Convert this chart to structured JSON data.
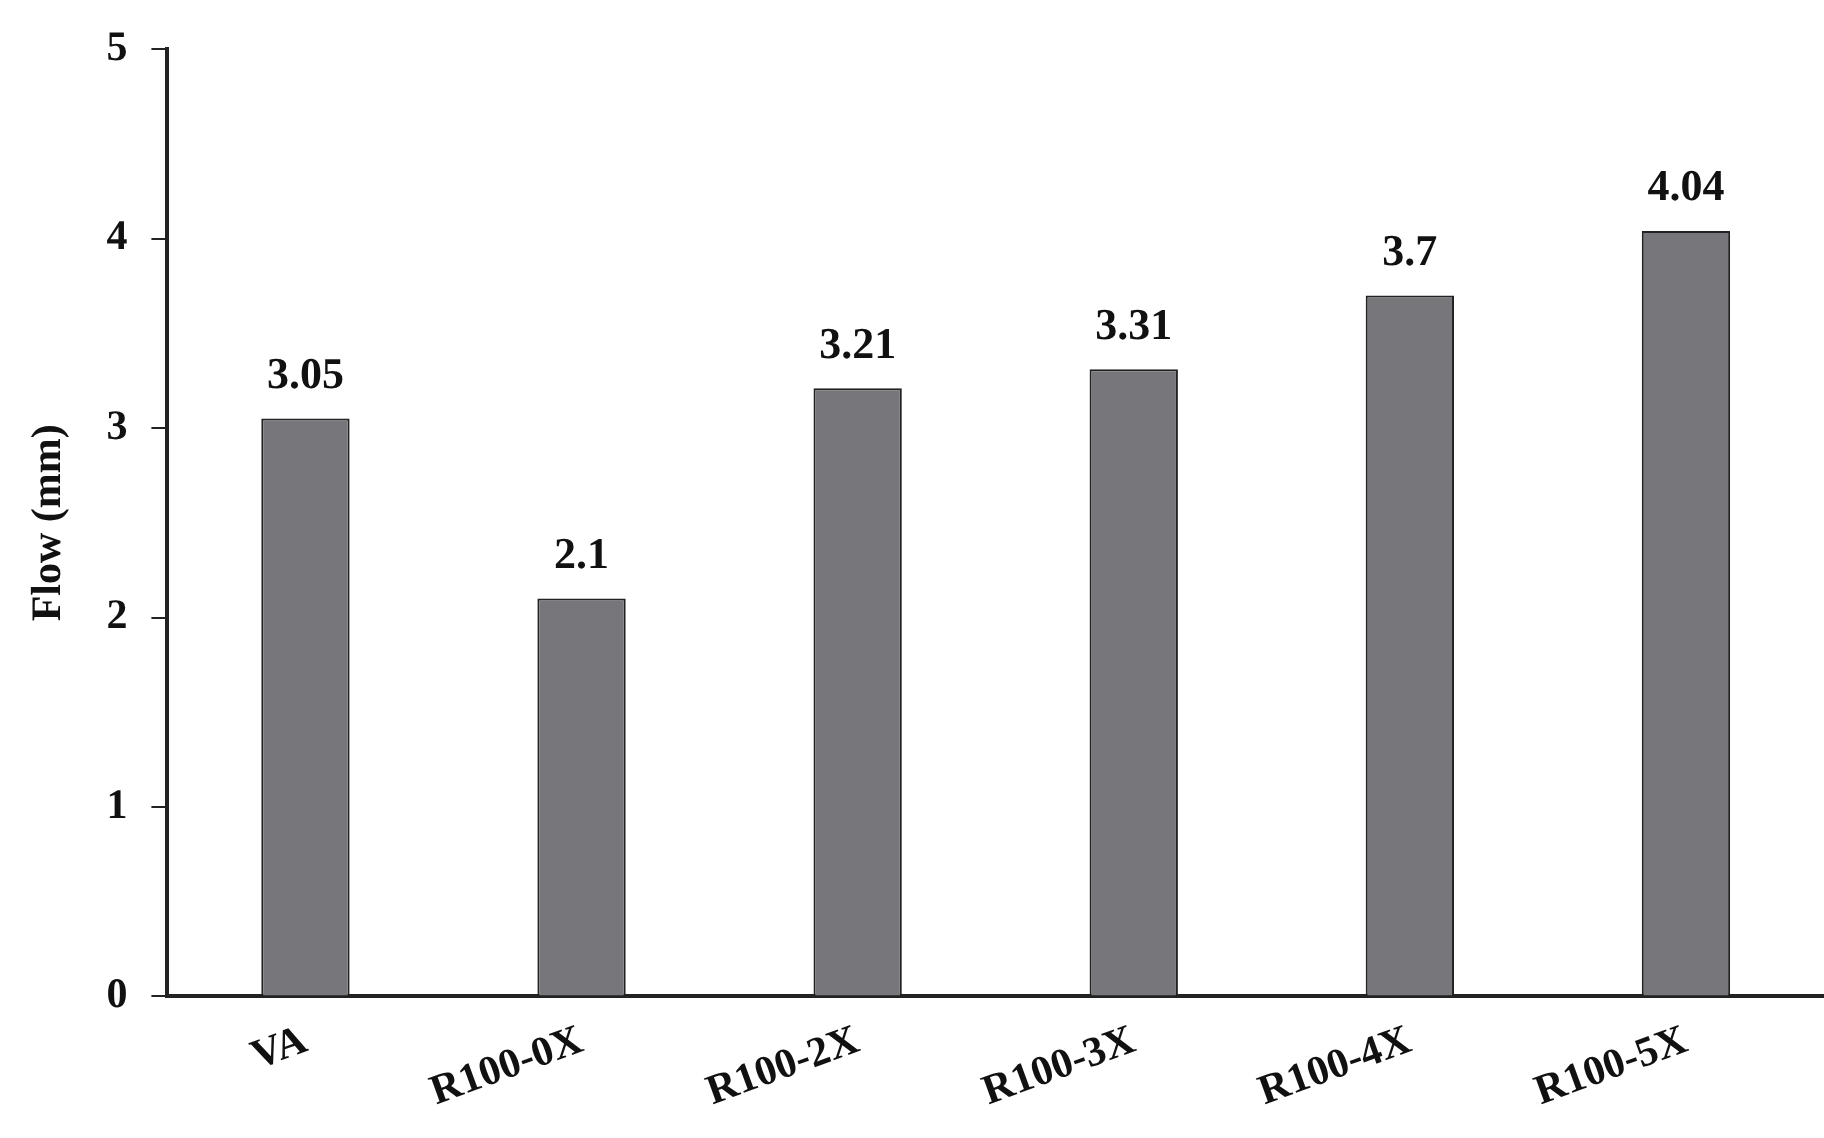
{
  "chart_data": {
    "type": "bar",
    "ylabel": "Flow (mm)",
    "categories": [
      "VA",
      "R100-0X",
      "R100-2X",
      "R100-3X",
      "R100-4X",
      "R100-5X"
    ],
    "values": [
      3.05,
      2.1,
      3.21,
      3.31,
      3.7,
      4.04
    ],
    "color": "#77777b",
    "ylim": [
      0,
      5
    ],
    "yticks": [
      0,
      1,
      2,
      3,
      4,
      5
    ],
    "grid": false,
    "legend": false,
    "data_labels": true
  }
}
